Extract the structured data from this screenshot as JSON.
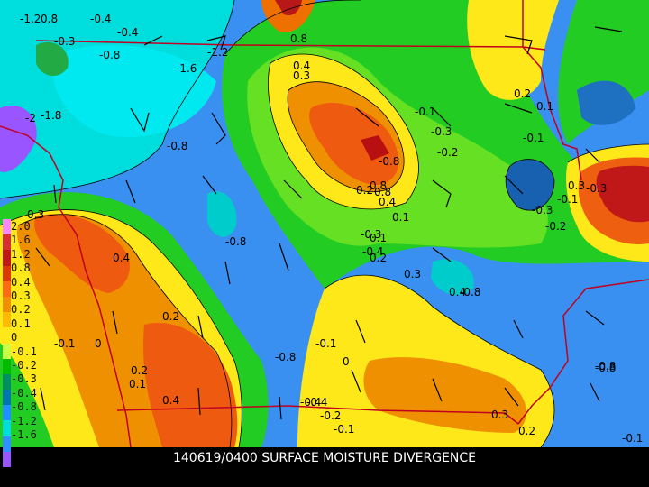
{
  "title": "140619/0400 SURFACE MOISTURE DIVERGENCE",
  "legend": {
    "entries": [
      "2.0",
      "1.6",
      "1.2",
      "0.8",
      "0.4",
      "0.3",
      "0.2",
      "0.1",
      "0",
      "-0.1",
      "-0.2",
      "-0.3",
      "-0.4",
      "-0.8",
      "-1.2",
      "-1.6"
    ],
    "colors": [
      "#ff88ff",
      "#d83030",
      "#c01818",
      "#dd3800",
      "#ff6a10",
      "#ee9000",
      "#ffbb00",
      "#ffe81a",
      "#ccff44",
      "#00bb00",
      "#009060",
      "#0077aa",
      "#1e90ff",
      "#00dddd",
      "#3090ff",
      "#9955ff"
    ]
  },
  "contour_labels": [
    "-1.2",
    "0.8",
    "-0.4",
    "-0.4",
    "-0.3",
    "-0.8",
    "-1.6",
    "-1.2",
    "-1.8",
    "-2",
    "-0.8",
    "0.8",
    "0.4",
    "0.3",
    "-0.8",
    "0.8",
    "0.2",
    "0.4",
    "0.1",
    "-0.1",
    "0.2",
    "0.1",
    "-0.1",
    "-0.3",
    "-0.2",
    "-0.3",
    "-0.1",
    "0.3",
    "-0.3",
    "-0.2",
    "-0.3",
    "-0.4",
    "0.1",
    "0.2",
    "0.3",
    "0.4",
    "0.8",
    "-0.8",
    "-0.8",
    "-0.4",
    "-0.8",
    "0.3",
    "0.4",
    "0.2",
    "-0.1",
    "0",
    "0.2",
    "0.1",
    "0.4",
    "-0.8",
    "-0.1",
    "0",
    "-0.4",
    "-0.2",
    "-0.1",
    "0.3",
    "0.2",
    "-0.8",
    "-0.1"
  ]
}
